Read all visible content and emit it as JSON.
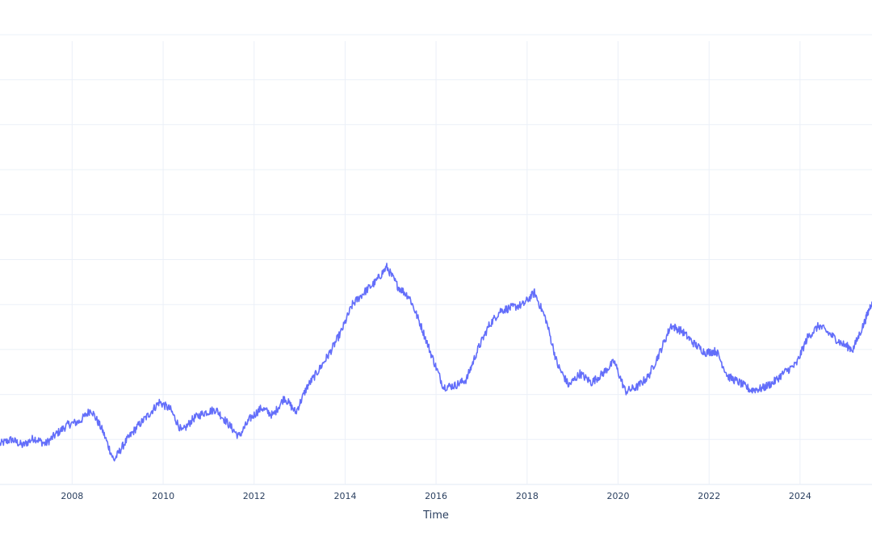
{
  "chart_data": {
    "type": "line",
    "title": "",
    "xlabel": "Time",
    "ylabel": "",
    "x_tick_labels": [
      "2008",
      "2010",
      "2012",
      "2014",
      "2016",
      "2018",
      "2020",
      "2022",
      "2024"
    ],
    "xlim": [
      "2006-06-01",
      "2025-08-01"
    ],
    "grid": true,
    "legend": "none",
    "colors": {
      "line": "#636efa",
      "grid": "#ebf0f8",
      "axis_text": "#2a3f5f",
      "background": "#ffffff"
    },
    "series": [
      {
        "x": [
          "2006-06-01",
          "2006-09-01",
          "2006-12-01",
          "2007-03-01",
          "2007-06-01",
          "2007-09-01",
          "2007-12-01",
          "2008-03-01",
          "2008-06-01",
          "2008-09-01",
          "2008-12-01",
          "2009-03-01",
          "2009-06-01",
          "2009-09-01",
          "2009-12-01",
          "2010-03-01",
          "2010-06-01",
          "2010-09-01",
          "2010-12-01",
          "2011-03-01",
          "2011-06-01",
          "2011-09-01",
          "2011-12-01",
          "2012-03-01",
          "2012-06-01",
          "2012-09-01",
          "2012-12-01",
          "2013-03-01",
          "2013-06-01",
          "2013-09-01",
          "2013-12-01",
          "2014-03-01",
          "2014-06-01",
          "2014-09-01",
          "2014-12-01",
          "2015-03-01",
          "2015-06-01",
          "2015-09-01",
          "2015-12-01",
          "2016-03-01",
          "2016-06-01",
          "2016-09-01",
          "2016-12-01",
          "2017-03-01",
          "2017-06-01",
          "2017-09-01",
          "2017-12-01",
          "2018-03-01",
          "2018-06-01",
          "2018-09-01",
          "2018-12-01",
          "2019-03-01",
          "2019-06-01",
          "2019-09-01",
          "2019-12-01",
          "2020-03-01",
          "2020-06-01",
          "2020-09-01",
          "2020-12-01",
          "2021-03-01",
          "2021-06-01",
          "2021-09-01",
          "2021-12-01",
          "2022-03-01",
          "2022-06-01",
          "2022-09-01",
          "2022-12-01",
          "2023-03-01",
          "2023-06-01",
          "2023-09-01",
          "2023-12-01",
          "2024-03-01",
          "2024-06-01",
          "2024-09-01",
          "2024-12-01",
          "2025-03-01",
          "2025-06-01",
          "2025-08-01"
        ],
        "y": [
          0.7,
          1.0,
          0.6,
          1.1,
          0.7,
          1.4,
          2.0,
          2.2,
          3.0,
          1.6,
          -0.4,
          0.8,
          1.8,
          2.6,
          3.5,
          3.0,
          1.5,
          2.4,
          2.8,
          3.0,
          2.1,
          1.2,
          2.4,
          3.1,
          2.6,
          3.8,
          2.8,
          4.5,
          5.6,
          6.8,
          8.2,
          10.0,
          10.8,
          11.5,
          12.5,
          11.2,
          10.5,
          8.6,
          6.5,
          4.5,
          4.6,
          5.0,
          7.0,
          8.6,
          9.6,
          9.8,
          10.0,
          10.8,
          9.0,
          6.0,
          4.6,
          5.4,
          4.8,
          5.4,
          6.2,
          4.2,
          4.5,
          5.2,
          6.8,
          8.6,
          8.2,
          7.4,
          6.8,
          6.9,
          5.2,
          4.8,
          4.3,
          4.4,
          4.8,
          5.5,
          6.0,
          7.8,
          8.6,
          8.0,
          7.4,
          7.0,
          8.8,
          10.2
        ]
      }
    ]
  }
}
